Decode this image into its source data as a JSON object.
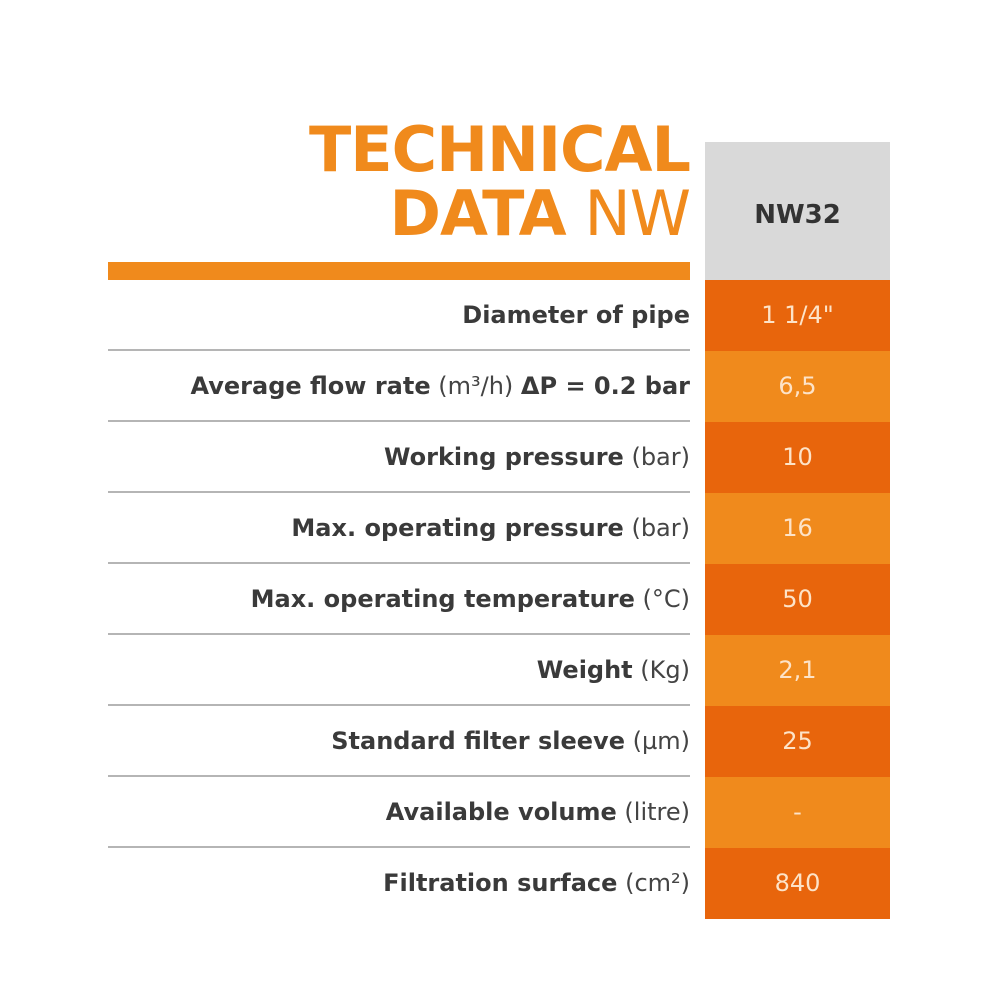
{
  "header": {
    "title_line1": "TECHNICAL",
    "title_line2_bold": "DATA",
    "title_line2_light": "NW",
    "column": "NW32"
  },
  "table": {
    "rows": [
      {
        "label": "Diameter of pipe",
        "value": "1 1/4\""
      },
      {
        "label": "Average flow rate",
        "unit": "(m³/h)",
        "condition": "ΔP = 0.2 bar",
        "value": "6,5"
      },
      {
        "label": "Working pressure",
        "unit": "(bar)",
        "value": 10
      },
      {
        "label": "Max. operating pressure",
        "unit": "(bar)",
        "value": 16
      },
      {
        "label": "Max. operating temperature",
        "unit": "(°C)",
        "value": 50
      },
      {
        "label": "Weight",
        "unit": "(Kg)",
        "value": "2,1"
      },
      {
        "label": "Standard filter sleeve",
        "unit": "(µm)",
        "value": 25
      },
      {
        "label": "Available volume",
        "unit": "(litre)",
        "value": "-"
      },
      {
        "label": "Filtration surface",
        "unit": "(cm²)",
        "value": 840
      }
    ]
  }
}
